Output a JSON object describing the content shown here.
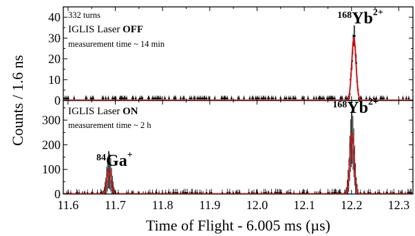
{
  "chart_data": {
    "type": "line",
    "xlabel": "Time of Flight - 6.005 ms (µs)",
    "ylabel": "Counts / 1.6 ns",
    "x_ticks": [
      "11.6",
      "11.7",
      "11.8",
      "11.9",
      "12.0",
      "12.1",
      "12.2",
      "12.3"
    ],
    "xlim": [
      11.59,
      12.33
    ],
    "colors": {
      "data": "#000000",
      "fit": "#d01818"
    },
    "panels": [
      {
        "id": "top",
        "ylim": [
          0,
          45
        ],
        "y_ticks": [
          "0",
          "10",
          "20",
          "30",
          "40"
        ],
        "annotations": {
          "turns": "332 turns",
          "laser_prefix": "IGLIS Laser ",
          "laser_state": "OFF",
          "measurement": "measurement time ~ 14 min"
        },
        "peaks": [
          {
            "mass": "168",
            "element": "Yb",
            "charge": "2+",
            "x": 12.205,
            "height": 30,
            "sigma": 0.0045,
            "label_x": 12.17,
            "label_y": 37
          }
        ],
        "noise_level": 1
      },
      {
        "id": "bottom",
        "ylim": [
          0,
          380
        ],
        "y_ticks": [
          "0",
          "100",
          "200",
          "300"
        ],
        "annotations": {
          "laser_prefix": "IGLIS Laser ",
          "laser_state": "ON",
          "measurement": "measurement time ~ 2 h"
        },
        "peaks": [
          {
            "mass": "84",
            "element": "Ga",
            "charge": "+",
            "x": 11.687,
            "height": 100,
            "sigma": 0.0045,
            "label_x": 11.66,
            "label_y": 115
          },
          {
            "mass": "168",
            "element": "Yb",
            "charge": "2+",
            "x": 12.201,
            "height": 245,
            "sigma": 0.0045,
            "label_x": 12.16,
            "label_y": 330
          }
        ],
        "noise_level": 4
      }
    ]
  }
}
